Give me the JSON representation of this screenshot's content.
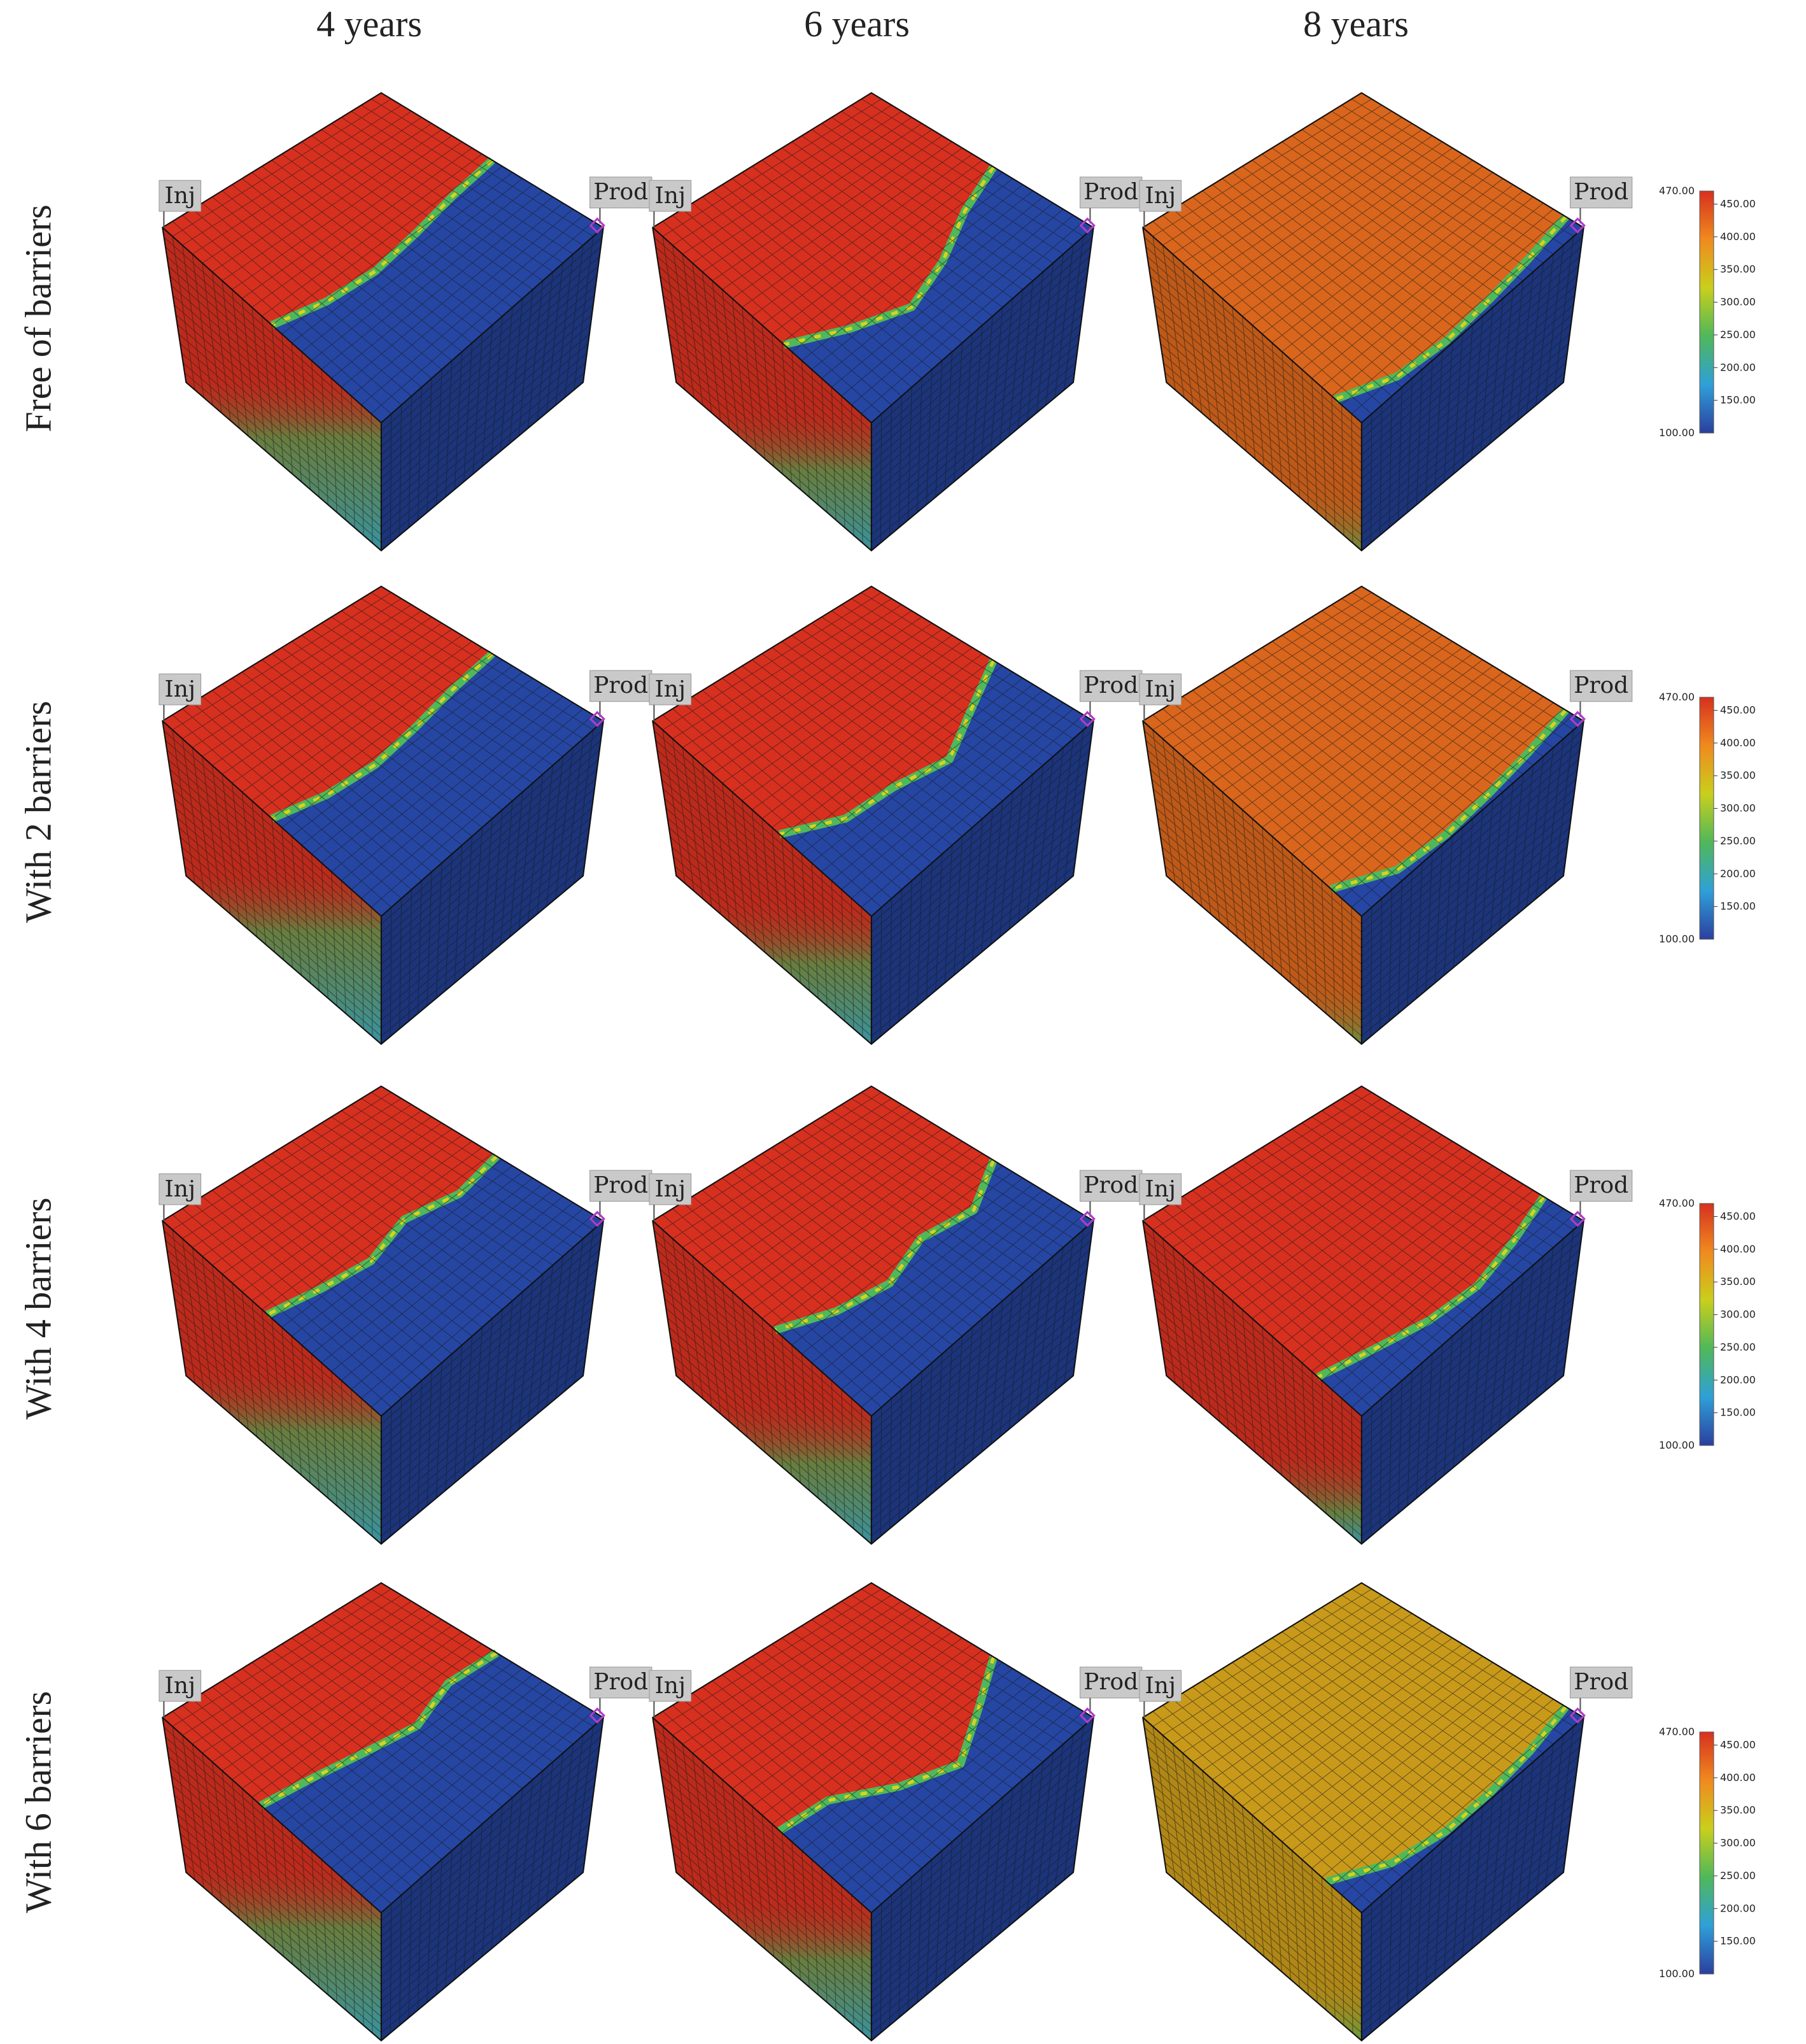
{
  "columns": [
    {
      "label": "4 years"
    },
    {
      "label": "6 years"
    },
    {
      "label": "8 years"
    }
  ],
  "rows": [
    {
      "label": "Free of barriers"
    },
    {
      "label": "With 2 barriers"
    },
    {
      "label": "With 4 barriers"
    },
    {
      "label": "With 6 barriers"
    }
  ],
  "well_labels": {
    "injector": "Inj",
    "producer": "Prod"
  },
  "colorbar": {
    "min_label": "100.00",
    "max_label": "470.00",
    "tick_labels": [
      "450.00",
      "400.00",
      "350.00",
      "300.00",
      "250.00",
      "200.00",
      "150.00"
    ],
    "tick_values": [
      450,
      400,
      350,
      300,
      250,
      200,
      150
    ],
    "min": 100,
    "max": 470
  },
  "colors": {
    "hot": "#d7301f",
    "orange": "#d9661c",
    "amber": "#c99a1a",
    "cold": "#2546a3",
    "front_green": "#4fb85a",
    "front_yellow": "#d7d21e",
    "front_cyan": "#2fb5c9",
    "grid_line": "#1a1a1a",
    "well_marker": "#b03cc8"
  },
  "panels": [
    {
      "row": 0,
      "col": 0,
      "front": [
        0.5,
        0.52,
        0.55,
        0.57,
        0.55,
        0.5
      ],
      "top_color": "hot",
      "side_fill": 0.45
    },
    {
      "row": 0,
      "col": 1,
      "front": [
        0.55,
        0.62,
        0.72,
        0.78,
        0.7,
        0.6
      ],
      "top_color": "hot",
      "side_fill": 0.55
    },
    {
      "row": 0,
      "col": 2,
      "front": [
        0.92,
        0.95,
        0.97,
        0.98,
        0.96,
        0.88
      ],
      "top_color": "orange",
      "side_fill": 0.8
    },
    {
      "row": 1,
      "col": 0,
      "front": [
        0.5,
        0.52,
        0.55,
        0.57,
        0.55,
        0.5
      ],
      "top_color": "hot",
      "side_fill": 0.45
    },
    {
      "row": 1,
      "col": 1,
      "front": [
        0.55,
        0.65,
        0.75,
        0.7,
        0.68,
        0.58
      ],
      "top_color": "hot",
      "side_fill": 0.55
    },
    {
      "row": 1,
      "col": 2,
      "front": [
        0.92,
        0.95,
        0.97,
        0.98,
        0.96,
        0.86
      ],
      "top_color": "orange",
      "side_fill": 0.8
    },
    {
      "row": 2,
      "col": 0,
      "front": [
        0.52,
        0.55,
        0.5,
        0.55,
        0.52,
        0.48
      ],
      "top_color": "hot",
      "side_fill": 0.45
    },
    {
      "row": 2,
      "col": 1,
      "front": [
        0.55,
        0.66,
        0.62,
        0.68,
        0.64,
        0.56
      ],
      "top_color": "hot",
      "side_fill": 0.55
    },
    {
      "row": 2,
      "col": 2,
      "front": [
        0.82,
        0.88,
        0.92,
        0.9,
        0.85,
        0.8
      ],
      "top_color": "hot",
      "side_fill": 0.7
    },
    {
      "row": 3,
      "col": 0,
      "front": [
        0.52,
        0.5,
        0.56,
        0.52,
        0.48,
        0.45
      ],
      "top_color": "hot",
      "side_fill": 0.45
    },
    {
      "row": 3,
      "col": 1,
      "front": [
        0.55,
        0.68,
        0.8,
        0.72,
        0.6,
        0.58
      ],
      "top_color": "hot",
      "side_fill": 0.55
    },
    {
      "row": 3,
      "col": 2,
      "front": [
        0.92,
        0.96,
        0.98,
        0.98,
        0.94,
        0.84
      ],
      "top_color": "amber",
      "side_fill": 0.8
    }
  ]
}
